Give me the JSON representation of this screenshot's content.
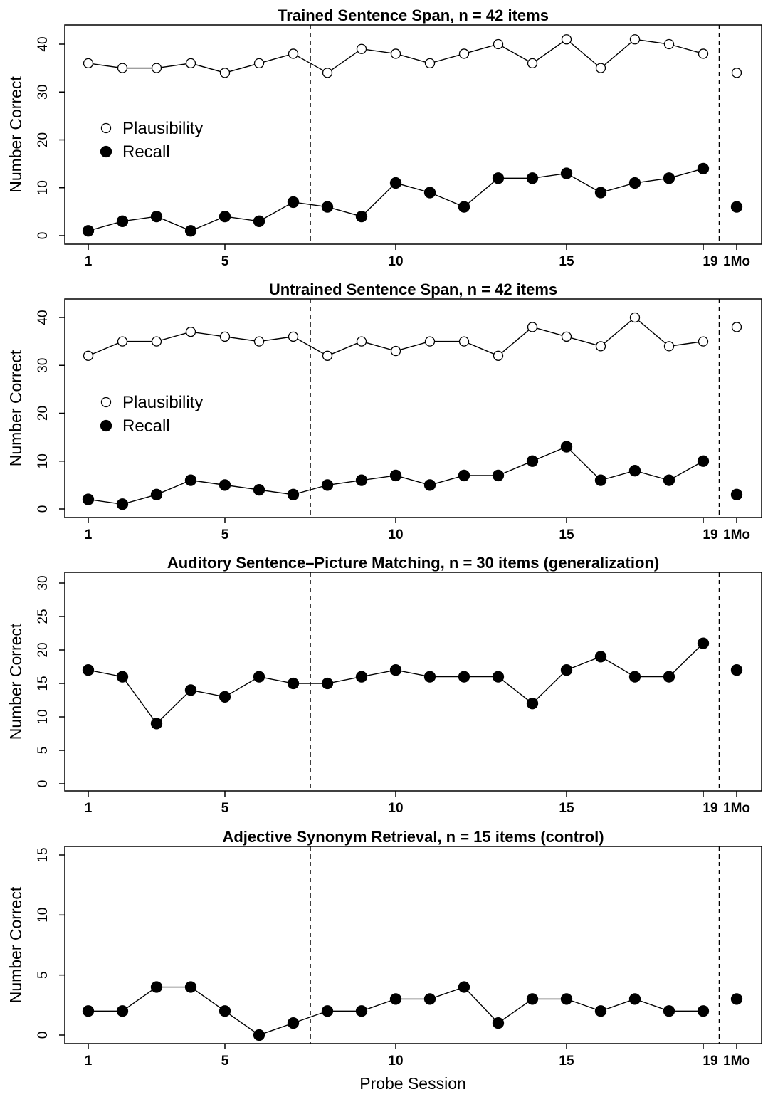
{
  "xlabel": "Probe Session",
  "colors": {
    "ink": "#000000",
    "open_fill": "#ffffff",
    "filled_fill": "#000000"
  },
  "chart_data": [
    {
      "type": "line",
      "title": "Trained Sentence Span, n = 42 items",
      "ylabel": "Number Correct",
      "ylim": [
        0,
        42
      ],
      "yticks": [
        0,
        10,
        20,
        30,
        40
      ],
      "xticks": [
        "1",
        "5",
        "10",
        "15",
        "19",
        "1Mo"
      ],
      "phase_lines": [
        7.5,
        19.5
      ],
      "legend": [
        "Plausibility",
        "Recall"
      ],
      "legend_position": "center-left",
      "series": [
        {
          "name": "Plausibility",
          "marker": "open",
          "values": [
            36,
            35,
            35,
            36,
            34,
            36,
            38,
            34,
            39,
            38,
            36,
            38,
            40,
            36,
            41,
            35,
            41,
            40,
            38
          ],
          "followup": 34
        },
        {
          "name": "Recall",
          "marker": "filled",
          "values": [
            1,
            3,
            4,
            1,
            4,
            3,
            7,
            6,
            4,
            11,
            9,
            6,
            12,
            12,
            13,
            9,
            11,
            12,
            14
          ],
          "followup": 6
        }
      ]
    },
    {
      "type": "line",
      "title": "Untrained Sentence Span, n = 42 items",
      "ylabel": "Number Correct",
      "ylim": [
        0,
        42
      ],
      "yticks": [
        0,
        10,
        20,
        30,
        40
      ],
      "xticks": [
        "1",
        "5",
        "10",
        "15",
        "19",
        "1Mo"
      ],
      "phase_lines": [
        7.5,
        19.5
      ],
      "legend": [
        "Plausibility",
        "Recall"
      ],
      "legend_position": "center-left",
      "series": [
        {
          "name": "Plausibility",
          "marker": "open",
          "values": [
            32,
            35,
            35,
            37,
            36,
            35,
            36,
            32,
            35,
            33,
            35,
            35,
            32,
            38,
            36,
            34,
            40,
            34,
            35
          ],
          "followup": 38
        },
        {
          "name": "Recall",
          "marker": "filled",
          "values": [
            2,
            1,
            3,
            6,
            5,
            4,
            3,
            5,
            6,
            7,
            5,
            7,
            7,
            10,
            13,
            6,
            8,
            6,
            10
          ],
          "followup": 3
        }
      ]
    },
    {
      "type": "line",
      "title": "Auditory Sentence–Picture Matching, n = 30 items (generalization)",
      "ylabel": "Number Correct",
      "ylim": [
        0,
        30
      ],
      "yticks": [
        0,
        5,
        10,
        15,
        20,
        25,
        30
      ],
      "xticks": [
        "1",
        "5",
        "10",
        "15",
        "19",
        "1Mo"
      ],
      "phase_lines": [
        7.5,
        19.5
      ],
      "legend": [],
      "series": [
        {
          "marker": "filled",
          "values": [
            17,
            16,
            9,
            14,
            13,
            16,
            15,
            15,
            16,
            17,
            16,
            16,
            16,
            12,
            17,
            19,
            16,
            16,
            21
          ],
          "followup": 17
        }
      ]
    },
    {
      "type": "line",
      "title": "Adjective Synonym Retrieval, n = 15 items (control)",
      "ylabel": "Number Correct",
      "ylim": [
        0,
        15
      ],
      "yticks": [
        0,
        5,
        10,
        15
      ],
      "xticks": [
        "1",
        "5",
        "10",
        "15",
        "19",
        "1Mo"
      ],
      "phase_lines": [
        7.5,
        19.5
      ],
      "legend": [],
      "series": [
        {
          "marker": "filled",
          "values": [
            2,
            2,
            4,
            4,
            2,
            0,
            1,
            2,
            2,
            3,
            3,
            4,
            1,
            3,
            3,
            2,
            3,
            2,
            2
          ],
          "followup": 3
        }
      ]
    }
  ]
}
